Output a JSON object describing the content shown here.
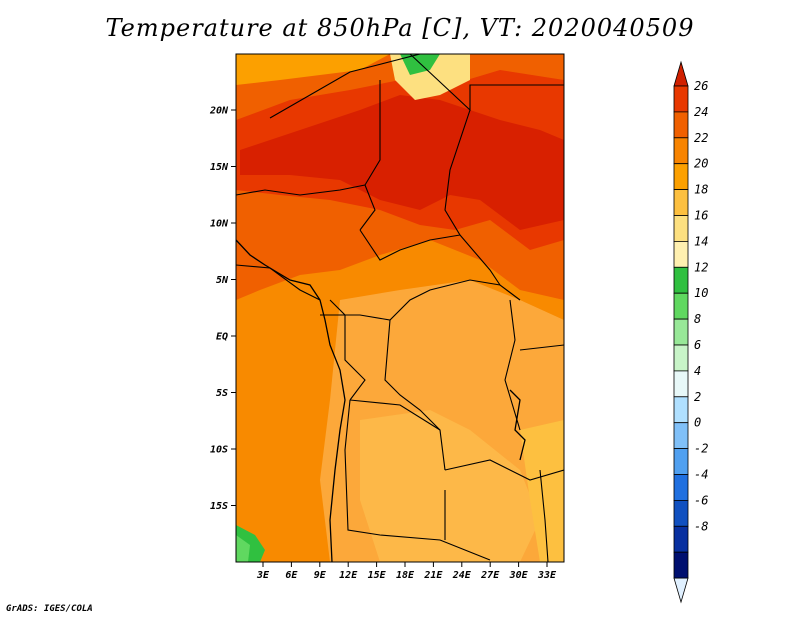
{
  "title": "Temperature at 850hPa [C], VT: 2020040509",
  "footer": "GrADS: IGES/COLA",
  "map": {
    "lat_ticks": [
      "20N",
      "15N",
      "10N",
      "5N",
      "EQ",
      "5S",
      "10S",
      "15S"
    ],
    "lon_ticks": [
      "3E",
      "6E",
      "9E",
      "12E",
      "15E",
      "18E",
      "21E",
      "24E",
      "27E",
      "30E",
      "33E"
    ]
  },
  "colorbar": {
    "levels": [
      "26",
      "24",
      "22",
      "20",
      "18",
      "16",
      "14",
      "12",
      "10",
      "8",
      "6",
      "4",
      "2",
      "0",
      "-2",
      "-4",
      "-6",
      "-8"
    ],
    "colors": [
      "#e0f0ff",
      "#d02000",
      "#e83800",
      "#f06000",
      "#f88400",
      "#fca000",
      "#fdc040",
      "#fde080",
      "#fff0b0",
      "#30c040",
      "#60d860",
      "#98e898",
      "#c8f4c8",
      "#e8f8f8",
      "#b0e0ff",
      "#80c0f8",
      "#50a0f0",
      "#2070e0",
      "#1050c0",
      "#0830a0",
      "#001070"
    ]
  }
}
